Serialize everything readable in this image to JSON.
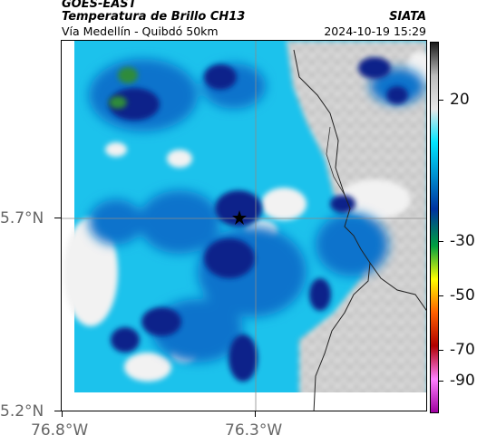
{
  "header": {
    "satellite": "GOES-EAST",
    "product": "Temperatura de Brillo CH13",
    "region": "Vía Medellín - Quibdó 50km",
    "organization": "SIATA",
    "timestamp": "2024-10-19 15:29"
  },
  "axes": {
    "lat_labels": [
      "5.7°N",
      "5.2°N"
    ],
    "lon_labels": [
      "76.8°W",
      "76.3°W"
    ]
  },
  "colorbar": {
    "tick_labels": [
      "20",
      "-30",
      "-50",
      "-70",
      "-90"
    ],
    "colors": [
      "#1a1a1a",
      "#bdbdbd",
      "#e8e8e8",
      "#00e5ff",
      "#0090d0",
      "#0033a0",
      "#00a040",
      "#ffff00",
      "#ff6000",
      "#b00000",
      "#ff80ff",
      "#a000a0"
    ]
  },
  "map": {
    "marker_icon": "star-icon",
    "colors": {
      "deep": "#0a2a8a",
      "mid": "#0b5fbf",
      "light": "#00b6e6",
      "cyan": "#4fd8f2",
      "green": "#2e8b3a",
      "cloud": "#ececec",
      "gray": "#b8b8b8"
    }
  }
}
